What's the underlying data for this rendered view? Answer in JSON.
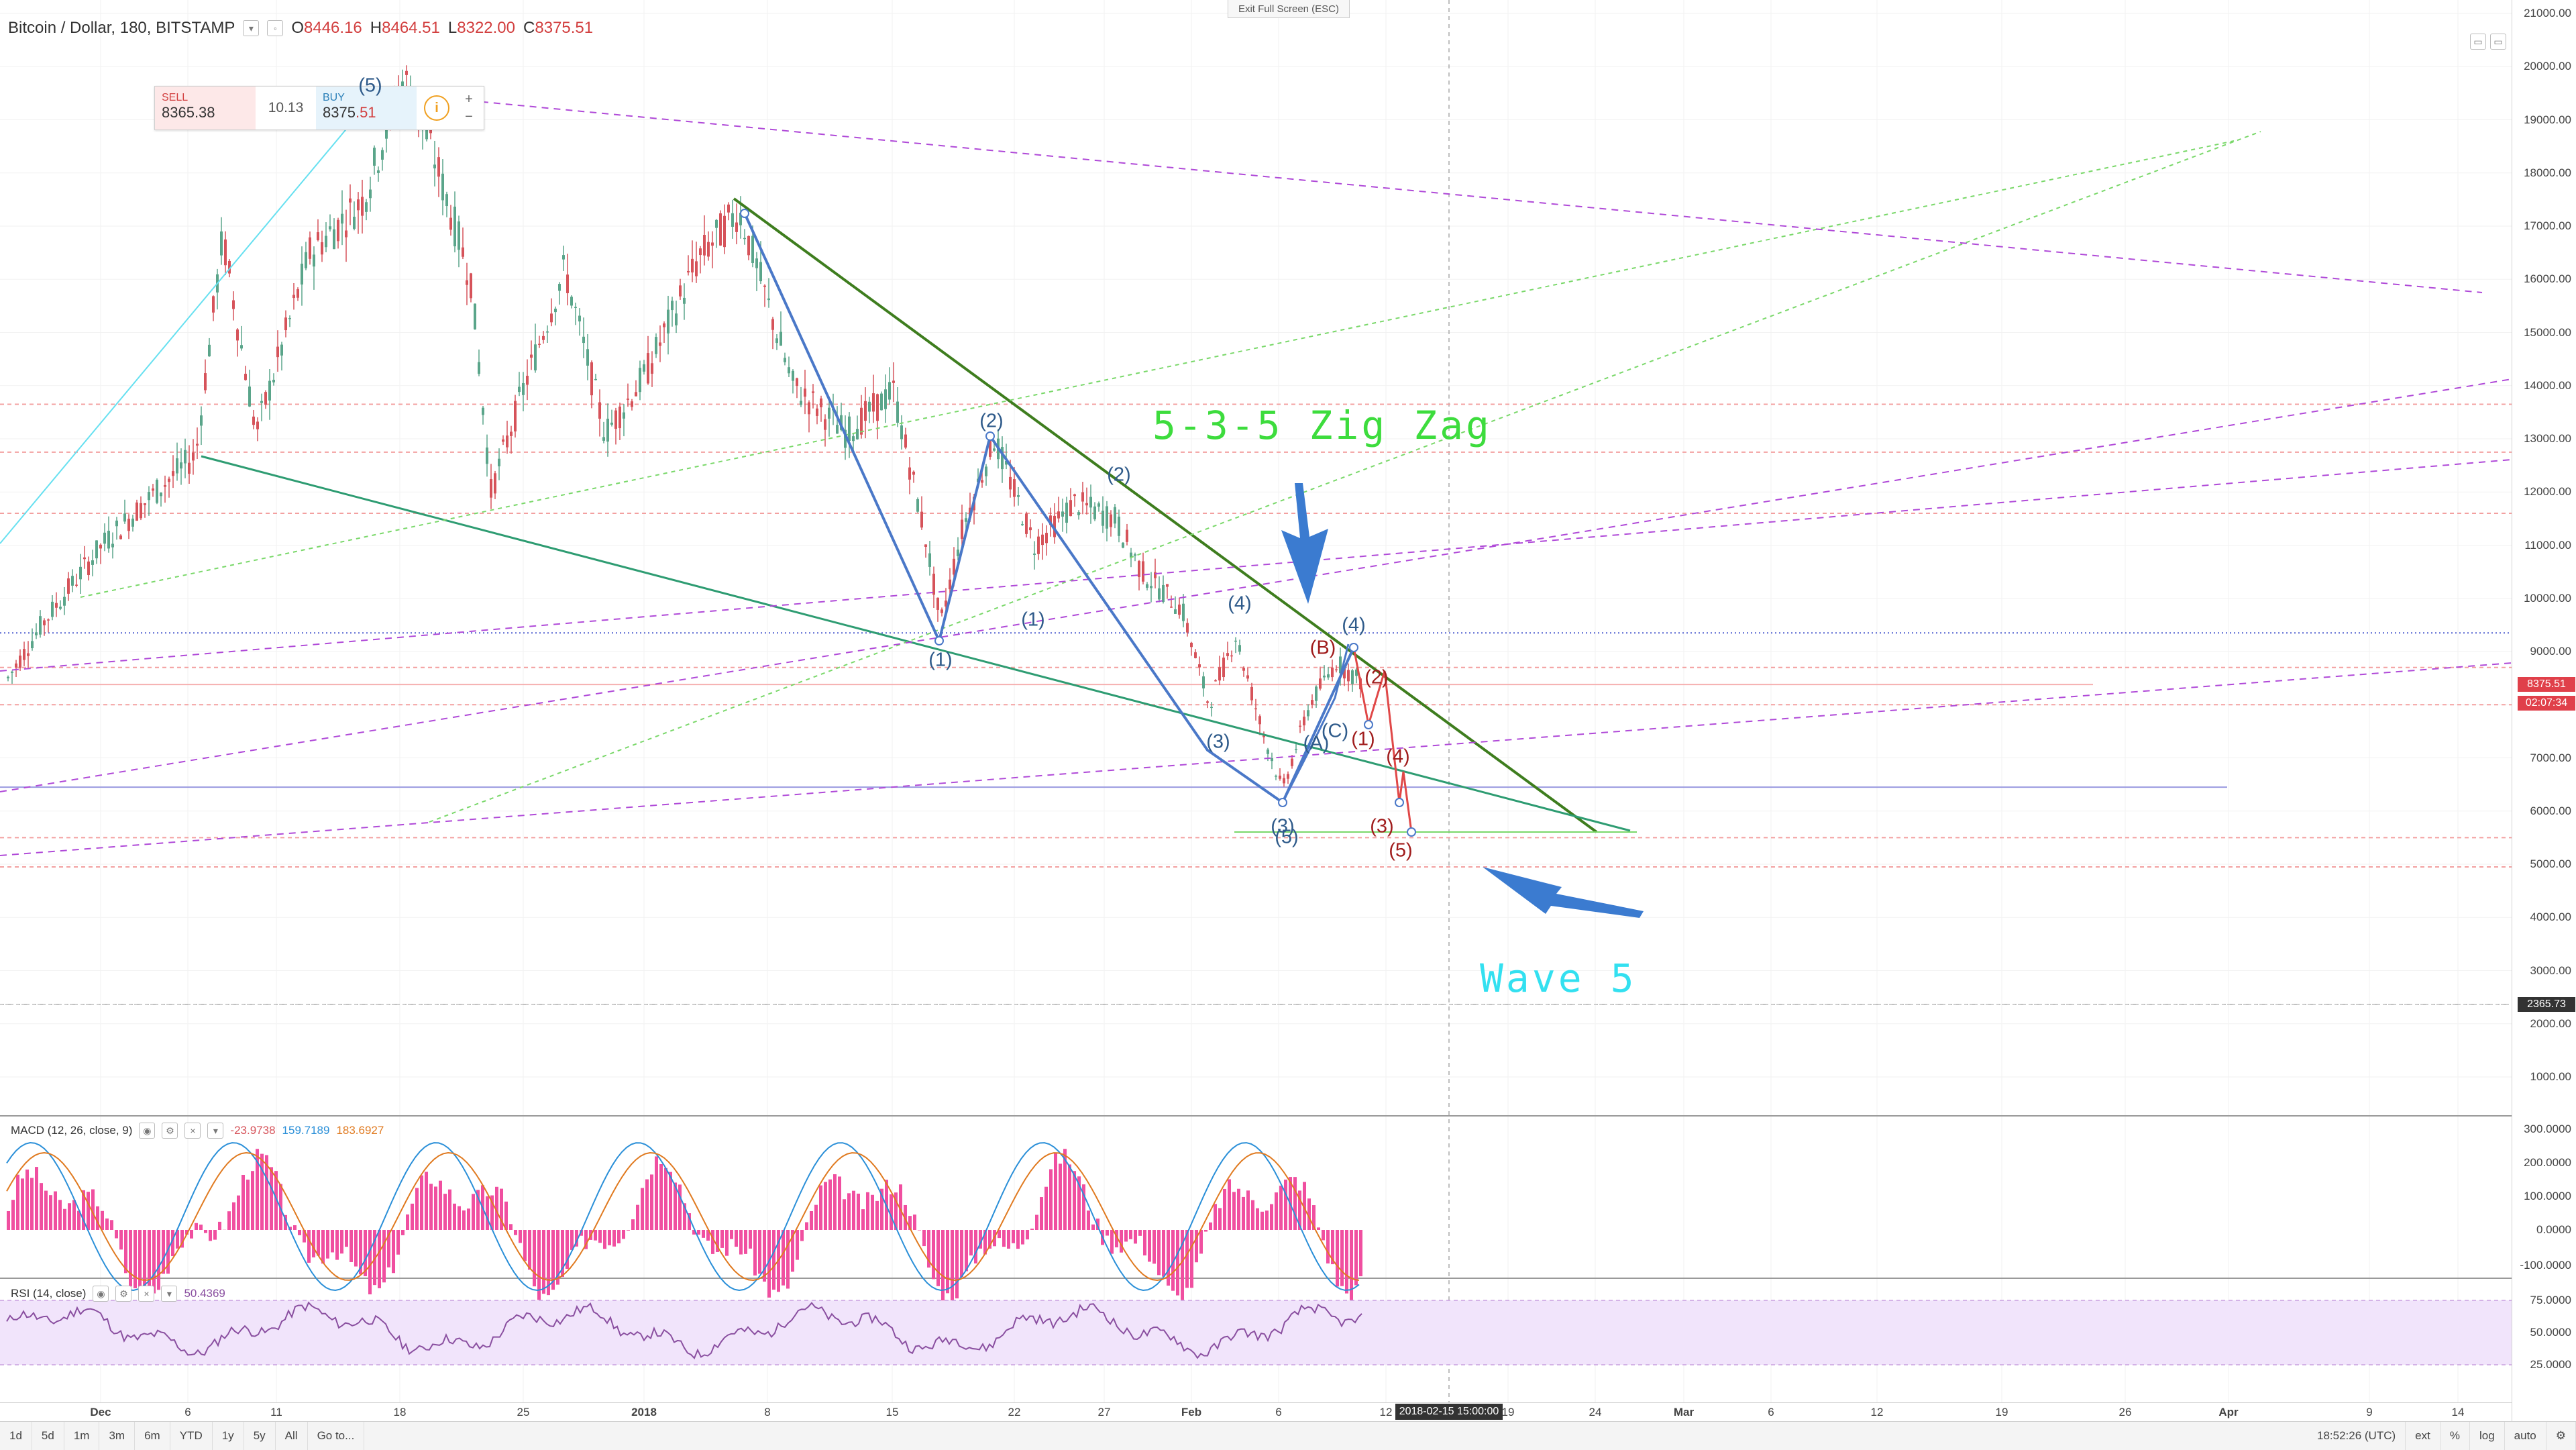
{
  "header": {
    "symbol_label": "Bitcoin / Dollar, 180, BITSTAMP",
    "o_key": "O",
    "o_val": "8446.16",
    "h_key": "H",
    "h_val": "8464.51",
    "l_key": "L",
    "l_val": "8322.00",
    "c_key": "C",
    "c_val": "8375.51",
    "exit_fullscreen": "Exit Full Screen (ESC)"
  },
  "trade": {
    "sell_label": "SELL",
    "sell_price": "8365.38",
    "spread": "10.13",
    "buy_label": "BUY",
    "buy_price_main": "8375",
    "buy_price_tail": ".51"
  },
  "price_axis": {
    "labels": [
      "21000.00",
      "20000.00",
      "19000.00",
      "18000.00",
      "17000.00",
      "16000.00",
      "15000.00",
      "14000.00",
      "13000.00",
      "12000.00",
      "11000.00",
      "10000.00",
      "9000.00",
      "8000.00",
      "7000.00",
      "6000.00",
      "5000.00",
      "4000.00",
      "3000.00",
      "2000.00",
      "1000.00"
    ],
    "last_price_tag": "8375.51",
    "countdown_tag": "02:07:34",
    "crosshair_tag": "2365.73"
  },
  "time_axis": {
    "labels": [
      "Dec",
      "6",
      "11",
      "18",
      "25",
      "2018",
      "8",
      "15",
      "22",
      "27",
      "Feb",
      "6",
      "12",
      "19",
      "24",
      "Mar",
      "6",
      "12",
      "19",
      "26",
      "Apr",
      "9",
      "14"
    ],
    "crosshair_label": "2018-02-15 15:00:00"
  },
  "annotations": {
    "zigzag_text": "5-3-5 Zig Zag",
    "wave5_text": "Wave 5",
    "wave_labels_blue": [
      "(5)",
      "(2)",
      "(1)",
      "(1)",
      "(2)",
      "(4)",
      "(3)",
      "(3)",
      "(5)",
      "(4)",
      "(A)",
      "(C)"
    ],
    "wave_labels_red": [
      "(B)",
      "(2)",
      "(1)",
      "(4)",
      "(3)",
      "(5)"
    ]
  },
  "macd": {
    "title": "MACD (12, 26, close, 9)",
    "v1": "-23.9738",
    "v2": "159.7189",
    "v3": "183.6927",
    "axis": [
      "300.0000",
      "200.0000",
      "100.0000",
      "0.0000",
      "-100.0000"
    ]
  },
  "rsi": {
    "title": "RSI (14, close)",
    "value": "50.4369",
    "axis": [
      "75.0000",
      "50.0000",
      "25.0000"
    ]
  },
  "toolbar": {
    "ranges": [
      "1d",
      "5d",
      "1m",
      "3m",
      "6m",
      "YTD",
      "1y",
      "5y",
      "All"
    ],
    "goto": "Go to...",
    "clock": "18:52:26 (UTC)",
    "ext": "ext",
    "pct": "%",
    "log": "log",
    "auto": "auto"
  },
  "colors": {
    "up": "#5aa58a",
    "down": "#d6535a",
    "macd_hist": "#f04fa0",
    "rsi_line": "#8a4fa0",
    "rsi_band": "#f1e4fb",
    "trendline_dark_green": "#3e7d1e",
    "trendline_teal": "#2e9c72",
    "wave_blue": "#4a78c8",
    "wave_red": "#e04848",
    "purple_dash": "#b04ad8"
  }
}
